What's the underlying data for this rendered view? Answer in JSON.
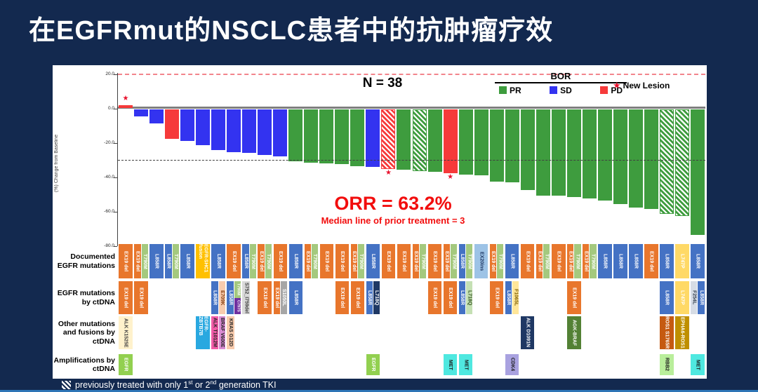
{
  "title": "在EGFRmut的NSCLC患者中的抗肿瘤疗效",
  "footnote": {
    "pre": "previously treated with only 1",
    "sup1": "st",
    "mid": " or 2",
    "sup2": "nd",
    "post": " generation TKI"
  },
  "chart_data": {
    "type": "bar",
    "subtype": "waterfall",
    "title": "N = 38",
    "n_label": "N = 38",
    "orr_label": "ORR = 63.2%",
    "median_label": "Median line of prior treatment = 3",
    "ylabel": "(%) Change from Baseline",
    "ylim": [
      -80,
      20
    ],
    "yticks": [
      20,
      0,
      -20,
      -40,
      -60,
      -80
    ],
    "reference_lines": [
      {
        "y": 20,
        "style": "dashed",
        "color": "#F2848C"
      },
      {
        "y": -30,
        "style": "dashed",
        "color": "#404040"
      }
    ],
    "legend": {
      "title": "BOR",
      "items": [
        {
          "label": "PR",
          "color": "#3E9C3E"
        },
        {
          "label": "SD",
          "color": "#3333F0"
        },
        {
          "label": "PD",
          "color": "#F63A3A"
        }
      ],
      "new_lesion_label": "New Lesion",
      "new_lesion_color": "#E8112D",
      "position": "top-right"
    },
    "hatch_meaning": "previously treated with only 1st or 2nd generation TKI",
    "row_labels": [
      "Documented EGFR mutations",
      "EGFR mutations by ctDNA",
      "Other mutations and fusions by ctDNA",
      "Amplifications by ctDNA"
    ],
    "palette": {
      "EX19 del": [
        "#E8762C",
        "#FFFFFF"
      ],
      "T790M": [
        "#A4C97E",
        "#FFFFFF"
      ],
      "L858R": [
        "#4472C4",
        "#FFFFFF"
      ],
      "EGFR-SHC1 fusion": [
        "#FFC000",
        "#FFFFFF"
      ],
      "EX20ins": [
        "#9DC3E6",
        "#1F3864"
      ],
      "E709K": [
        "#F8CBAD",
        "#843C0C"
      ],
      "C797S": [
        "#7030A0",
        "#FFFFFF"
      ],
      "S752_I759del": [
        "#D9D9D9",
        "#404040"
      ],
      "S1050L": [
        "#A6A6A6",
        "#FFFFFF"
      ],
      "L718Q@dark": [
        "#1F3864",
        "#FFFFFF"
      ],
      "L718Q@light": [
        "#C5E0B4",
        "#375623"
      ],
      "F1065L": [
        "#FFE699",
        "#7F6000"
      ],
      "L747P": [
        "#FFD966",
        "#FFFFFF"
      ],
      "F254L": [
        "#D6DCE5",
        "#333F50"
      ],
      "ALK K1525E": [
        "#FFF2CC",
        "#404040"
      ],
      "EGFR-ZBTB7B": [
        "#29A8E0",
        "#FFFFFF"
      ],
      "ALK T1012M": [
        "#F25CA8",
        "#222222"
      ],
      "BRAF V600E": [
        "#D98BD3",
        "#222222"
      ],
      "KRAS G12D": [
        "#F8CBAD",
        "#222222"
      ],
      "ALK D1091N": [
        "#1F3864",
        "#FFFFFF"
      ],
      "AGK-BRAF": [
        "#538135",
        "#FFFFFF"
      ],
      "ROS1 S1765R": [
        "#C55A11",
        "#FFFFFF"
      ],
      "EPHA6-ROS1": [
        "#BF8F00",
        "#FFFFFF"
      ],
      "EGFR": [
        "#92D050",
        "#FFFFFF"
      ],
      "MET": [
        "#4FE8E0",
        "#1A1A1A"
      ],
      "CDK4": [
        "#A9A2E0",
        "#1A1A1A"
      ],
      "RBB2": [
        "#B9EE9B",
        "#1A1A1A"
      ]
    },
    "patients": [
      {
        "v": 2,
        "bor": "PD",
        "hatch": false,
        "star": "above",
        "doc": [
          {
            "k": "EX19 del"
          }
        ],
        "ctdna": [
          {
            "k": "EX19 del"
          }
        ],
        "other": [
          {
            "k": "ALK K1525E"
          }
        ],
        "amp": [
          {
            "k": "EGFR"
          }
        ]
      },
      {
        "v": -4,
        "bor": "SD",
        "hatch": false,
        "star": null,
        "doc": [
          {
            "k": "EX19 del"
          },
          {
            "k": "T790M"
          }
        ],
        "ctdna": [
          {
            "k": "EX19 del"
          }
        ],
        "other": [],
        "amp": []
      },
      {
        "v": -8,
        "bor": "SD",
        "hatch": false,
        "star": null,
        "doc": [
          {
            "k": "L858R"
          }
        ],
        "ctdna": [],
        "other": [],
        "amp": []
      },
      {
        "v": -17,
        "bor": "PD",
        "hatch": false,
        "star": null,
        "doc": [
          {
            "k": "L858R"
          },
          {
            "k": "T790M"
          }
        ],
        "ctdna": [],
        "other": [],
        "amp": []
      },
      {
        "v": -18.5,
        "bor": "SD",
        "hatch": false,
        "star": null,
        "doc": [
          {
            "k": "L858R"
          }
        ],
        "ctdna": [],
        "other": [],
        "amp": []
      },
      {
        "v": -21,
        "bor": "SD",
        "hatch": false,
        "star": null,
        "doc": [
          {
            "k": "EGFR-SHC1 fusion"
          }
        ],
        "ctdna": [],
        "other": [
          {
            "k": "EGFR-ZBTB7B"
          }
        ],
        "amp": []
      },
      {
        "v": -23.5,
        "bor": "SD",
        "hatch": false,
        "star": null,
        "doc": [
          {
            "k": "L858R"
          }
        ],
        "ctdna": [
          {
            "k": "L858R"
          },
          {
            "k": "E709K"
          }
        ],
        "other": [
          {
            "k": "ALK T1012M"
          },
          {
            "k": "BRAF V600E"
          }
        ],
        "amp": []
      },
      {
        "v": -25,
        "bor": "SD",
        "hatch": false,
        "star": null,
        "doc": [
          {
            "k": "EX19 del"
          }
        ],
        "ctdna": [
          {
            "k": "L858R"
          },
          {
            "stack": [
              "T790M",
              "C797S"
            ]
          }
        ],
        "other": [
          {
            "k": "KRAS G12D",
            "half": true
          }
        ],
        "amp": []
      },
      {
        "v": -25.5,
        "bor": "SD",
        "hatch": false,
        "star": null,
        "doc": [
          {
            "k": "L858R"
          },
          {
            "k": "T790M"
          }
        ],
        "ctdna": [
          {
            "k": "S752_I759del",
            "half": true
          }
        ],
        "other": [],
        "amp": []
      },
      {
        "v": -26.5,
        "bor": "SD",
        "hatch": false,
        "star": null,
        "doc": [
          {
            "k": "EX19 del"
          },
          {
            "k": "T790M"
          }
        ],
        "ctdna": [
          {
            "k": "EX19 del"
          }
        ],
        "other": [],
        "amp": []
      },
      {
        "v": -27.5,
        "bor": "SD",
        "hatch": false,
        "star": null,
        "doc": [
          {
            "k": "EX19 del"
          }
        ],
        "ctdna": [
          {
            "k": "EX19 del"
          },
          {
            "k": "S1050L"
          }
        ],
        "other": [],
        "amp": []
      },
      {
        "v": -30,
        "bor": "PR",
        "hatch": false,
        "star": null,
        "doc": [
          {
            "k": "L858R"
          }
        ],
        "ctdna": [
          {
            "k": "L858R"
          }
        ],
        "other": [],
        "amp": []
      },
      {
        "v": -31,
        "bor": "PR",
        "hatch": false,
        "star": null,
        "doc": [
          {
            "k": "EX19 del"
          },
          {
            "k": "T790M"
          }
        ],
        "ctdna": [],
        "other": [],
        "amp": []
      },
      {
        "v": -31.5,
        "bor": "PR",
        "hatch": false,
        "star": null,
        "doc": [
          {
            "k": "EX19 del"
          }
        ],
        "ctdna": [],
        "other": [],
        "amp": []
      },
      {
        "v": -32,
        "bor": "PR",
        "hatch": false,
        "star": null,
        "doc": [
          {
            "k": "EX19 del"
          }
        ],
        "ctdna": [
          {
            "k": "EX19 del"
          }
        ],
        "other": [],
        "amp": []
      },
      {
        "v": -33,
        "bor": "PR",
        "hatch": false,
        "star": null,
        "doc": [
          {
            "k": "EX19 del"
          },
          {
            "k": "T790M"
          }
        ],
        "ctdna": [
          {
            "k": "EX19 del"
          }
        ],
        "other": [],
        "amp": []
      },
      {
        "v": -33.5,
        "bor": "SD",
        "hatch": false,
        "star": null,
        "doc": [
          {
            "k": "L858R"
          }
        ],
        "ctdna": [
          {
            "k": "L858R"
          },
          {
            "k": "L718Q@dark"
          }
        ],
        "other": [],
        "amp": [
          {
            "k": "EGFR"
          }
        ]
      },
      {
        "v": -34.5,
        "bor": "PD",
        "hatch": true,
        "star": "below",
        "doc": [
          {
            "k": "EX19 del"
          }
        ],
        "ctdna": [],
        "other": [],
        "amp": []
      },
      {
        "v": -35,
        "bor": "PR",
        "hatch": false,
        "star": null,
        "doc": [
          {
            "k": "EX19 del"
          }
        ],
        "ctdna": [],
        "other": [],
        "amp": []
      },
      {
        "v": -36,
        "bor": "PR",
        "hatch": true,
        "star": null,
        "doc": [
          {
            "k": "EX19 del"
          },
          {
            "k": "T790M"
          }
        ],
        "ctdna": [],
        "other": [],
        "amp": []
      },
      {
        "v": -36.5,
        "bor": "PR",
        "hatch": false,
        "star": null,
        "doc": [
          {
            "k": "EX19 del"
          }
        ],
        "ctdna": [
          {
            "k": "EX19 del"
          }
        ],
        "other": [],
        "amp": []
      },
      {
        "v": -37,
        "bor": "PD",
        "hatch": false,
        "star": "below",
        "doc": [
          {
            "k": "EX19 del"
          },
          {
            "k": "T790M"
          }
        ],
        "ctdna": [
          {
            "k": "EX19 del"
          }
        ],
        "other": [],
        "amp": [
          {
            "k": "MET"
          }
        ]
      },
      {
        "v": -38,
        "bor": "PR",
        "hatch": false,
        "star": null,
        "doc": [
          {
            "k": "L858R"
          },
          {
            "k": "T790M"
          }
        ],
        "ctdna": [
          {
            "k": "L858R"
          },
          {
            "k": "L718Q@light"
          }
        ],
        "other": [],
        "amp": [
          {
            "k": "MET"
          }
        ]
      },
      {
        "v": -38.5,
        "bor": "PR",
        "hatch": false,
        "star": null,
        "doc": [
          {
            "k": "EX20ins"
          }
        ],
        "ctdna": [],
        "other": [],
        "amp": []
      },
      {
        "v": -42,
        "bor": "PR",
        "hatch": false,
        "star": null,
        "doc": [
          {
            "k": "EX19 del"
          },
          {
            "k": "T790M"
          }
        ],
        "ctdna": [
          {
            "k": "EX19 del"
          }
        ],
        "other": [],
        "amp": []
      },
      {
        "v": -42.5,
        "bor": "PR",
        "hatch": false,
        "star": null,
        "doc": [
          {
            "k": "L858R"
          }
        ],
        "ctdna": [
          {
            "k": "L858R"
          },
          {
            "k": "F1065L"
          }
        ],
        "other": [],
        "amp": [
          {
            "k": "CDK4"
          }
        ]
      },
      {
        "v": -47,
        "bor": "PR",
        "hatch": false,
        "star": null,
        "doc": [
          {
            "k": "EX19 del"
          }
        ],
        "ctdna": [],
        "other": [
          {
            "k": "ALK D1091N"
          }
        ],
        "amp": []
      },
      {
        "v": -50,
        "bor": "PR",
        "hatch": false,
        "star": null,
        "doc": [
          {
            "k": "EX19 del"
          },
          {
            "k": "T790M"
          }
        ],
        "ctdna": [],
        "other": [],
        "amp": []
      },
      {
        "v": -50,
        "bor": "PR",
        "hatch": false,
        "star": null,
        "doc": [
          {
            "k": "EX19 del"
          }
        ],
        "ctdna": [],
        "other": [],
        "amp": []
      },
      {
        "v": -51,
        "bor": "PR",
        "hatch": false,
        "star": null,
        "doc": [
          {
            "k": "EX19 del"
          },
          {
            "k": "T790M"
          }
        ],
        "ctdna": [
          {
            "k": "EX19 del"
          }
        ],
        "other": [
          {
            "k": "AGK-BRAF"
          }
        ],
        "amp": []
      },
      {
        "v": -52,
        "bor": "PR",
        "hatch": false,
        "star": null,
        "doc": [
          {
            "k": "EX19 del"
          },
          {
            "k": "T790M"
          }
        ],
        "ctdna": [],
        "other": [],
        "amp": []
      },
      {
        "v": -53,
        "bor": "PR",
        "hatch": false,
        "star": null,
        "doc": [
          {
            "k": "L858R"
          }
        ],
        "ctdna": [],
        "other": [],
        "amp": []
      },
      {
        "v": -55,
        "bor": "PR",
        "hatch": false,
        "star": null,
        "doc": [
          {
            "k": "L858R"
          }
        ],
        "ctdna": [],
        "other": [],
        "amp": []
      },
      {
        "v": -57,
        "bor": "PR",
        "hatch": false,
        "star": null,
        "doc": [
          {
            "k": "L858R"
          }
        ],
        "ctdna": [],
        "other": [],
        "amp": []
      },
      {
        "v": -58,
        "bor": "PR",
        "hatch": false,
        "star": null,
        "doc": [
          {
            "k": "EX19 del"
          }
        ],
        "ctdna": [],
        "other": [],
        "amp": []
      },
      {
        "v": -61,
        "bor": "PR",
        "hatch": true,
        "star": null,
        "doc": [
          {
            "k": "L858R"
          }
        ],
        "ctdna": [
          {
            "k": "L858R"
          }
        ],
        "other": [
          {
            "k": "ROS1 S1765R"
          }
        ],
        "amp": [
          {
            "k": "RBB2"
          }
        ]
      },
      {
        "v": -62,
        "bor": "PR",
        "hatch": true,
        "star": null,
        "doc": [
          {
            "k": "L747P"
          }
        ],
        "ctdna": [
          {
            "k": "L747P"
          }
        ],
        "other": [
          {
            "k": "EPHA6-ROS1"
          }
        ],
        "amp": []
      },
      {
        "v": -73,
        "bor": "PR",
        "hatch": false,
        "star": null,
        "doc": [
          {
            "k": "L858R"
          }
        ],
        "ctdna": [
          {
            "k": "F254L"
          },
          {
            "k": "L858R"
          }
        ],
        "other": [],
        "amp": [
          {
            "k": "MET"
          }
        ]
      }
    ]
  }
}
